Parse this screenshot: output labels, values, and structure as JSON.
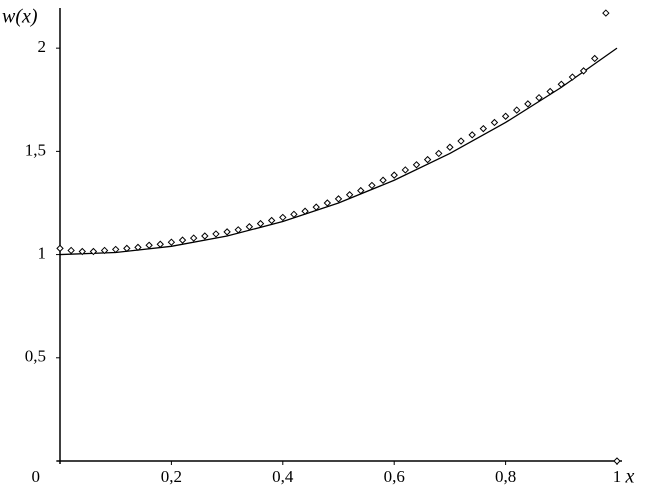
{
  "chart_data": {
    "type": "line",
    "xlabel": "x",
    "ylabel": "w(x)",
    "xlim": [
      0,
      1
    ],
    "ylim": [
      0,
      2.18
    ],
    "xticks": [
      {
        "value": 0.2,
        "label": "0,2"
      },
      {
        "value": 0.4,
        "label": "0,4"
      },
      {
        "value": 0.6,
        "label": "0,6"
      },
      {
        "value": 0.8,
        "label": "0,8"
      },
      1
    ],
    "yticks": [
      0,
      {
        "value": 0.5,
        "label": "0,5"
      },
      1,
      {
        "value": 1.5,
        "label": "1,5"
      },
      2
    ],
    "series": [
      {
        "type": "line",
        "color": "#000000",
        "x": [
          0,
          0.1,
          0.2,
          0.3,
          0.4,
          0.5,
          0.6,
          0.7,
          0.8,
          0.9,
          1
        ],
        "values": [
          1,
          1.01,
          1.04,
          1.09,
          1.16,
          1.25,
          1.36,
          1.49,
          1.64,
          1.81,
          2
        ]
      },
      {
        "type": "scatter",
        "color": "#000000",
        "x": [
          0,
          0.02,
          0.04,
          0.06,
          0.08,
          0.1,
          0.12,
          0.14,
          0.16,
          0.18,
          0.2,
          0.22,
          0.24,
          0.26,
          0.28,
          0.3,
          0.32,
          0.34,
          0.36,
          0.38,
          0.4,
          0.42,
          0.44,
          0.46,
          0.48,
          0.5,
          0.52,
          0.54,
          0.56,
          0.58,
          0.6,
          0.62,
          0.64,
          0.66,
          0.68,
          0.7,
          0.72,
          0.74,
          0.76,
          0.78,
          0.8,
          0.82,
          0.84,
          0.86,
          0.88,
          0.9,
          0.92,
          0.94,
          0.96,
          0.98,
          1
        ],
        "values": [
          1.03,
          1.02,
          1.015,
          1.015,
          1.02,
          1.025,
          1.03,
          1.035,
          1.045,
          1.05,
          1.06,
          1.07,
          1.08,
          1.09,
          1.1,
          1.11,
          1.12,
          1.135,
          1.15,
          1.165,
          1.18,
          1.195,
          1.21,
          1.23,
          1.25,
          1.27,
          1.29,
          1.31,
          1.335,
          1.36,
          1.385,
          1.41,
          1.435,
          1.46,
          1.49,
          1.52,
          1.55,
          1.58,
          1.61,
          1.64,
          1.67,
          1.7,
          1.73,
          1.76,
          1.79,
          1.825,
          1.86,
          1.89,
          1.95,
          2.17,
          0
        ]
      }
    ]
  }
}
